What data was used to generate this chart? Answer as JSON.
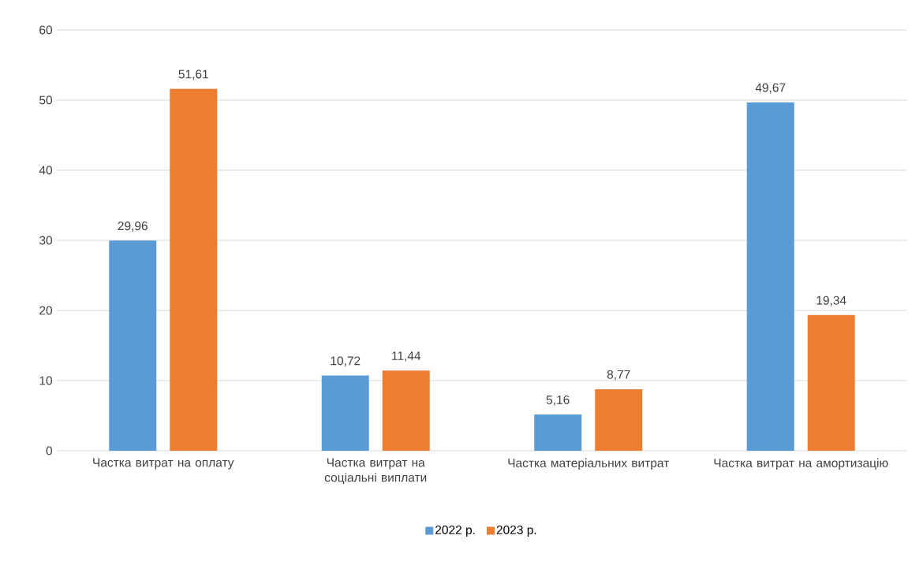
{
  "chart_data": {
    "type": "bar",
    "categories": [
      "Частка витрат на оплату",
      "Частка витрат на соціальні виплати",
      "Частка матеріальних витрат",
      "Частка витрат на амортизацію"
    ],
    "series": [
      {
        "name": "2022 р.",
        "color": "#5b9bd5",
        "values": [
          29.96,
          10.72,
          5.16,
          49.67
        ],
        "value_labels": [
          "29,96",
          "10,72",
          "5,16",
          "49,67"
        ]
      },
      {
        "name": "2023 р.",
        "color": "#ed7d31",
        "values": [
          51.61,
          11.44,
          8.77,
          19.34
        ],
        "value_labels": [
          "51,61",
          "11,44",
          "8,77",
          "19,34"
        ]
      }
    ],
    "ylim": [
      0,
      60
    ],
    "yticks": [
      0,
      10,
      20,
      30,
      40,
      50,
      60
    ],
    "grid": "y",
    "legend": "bottom"
  }
}
